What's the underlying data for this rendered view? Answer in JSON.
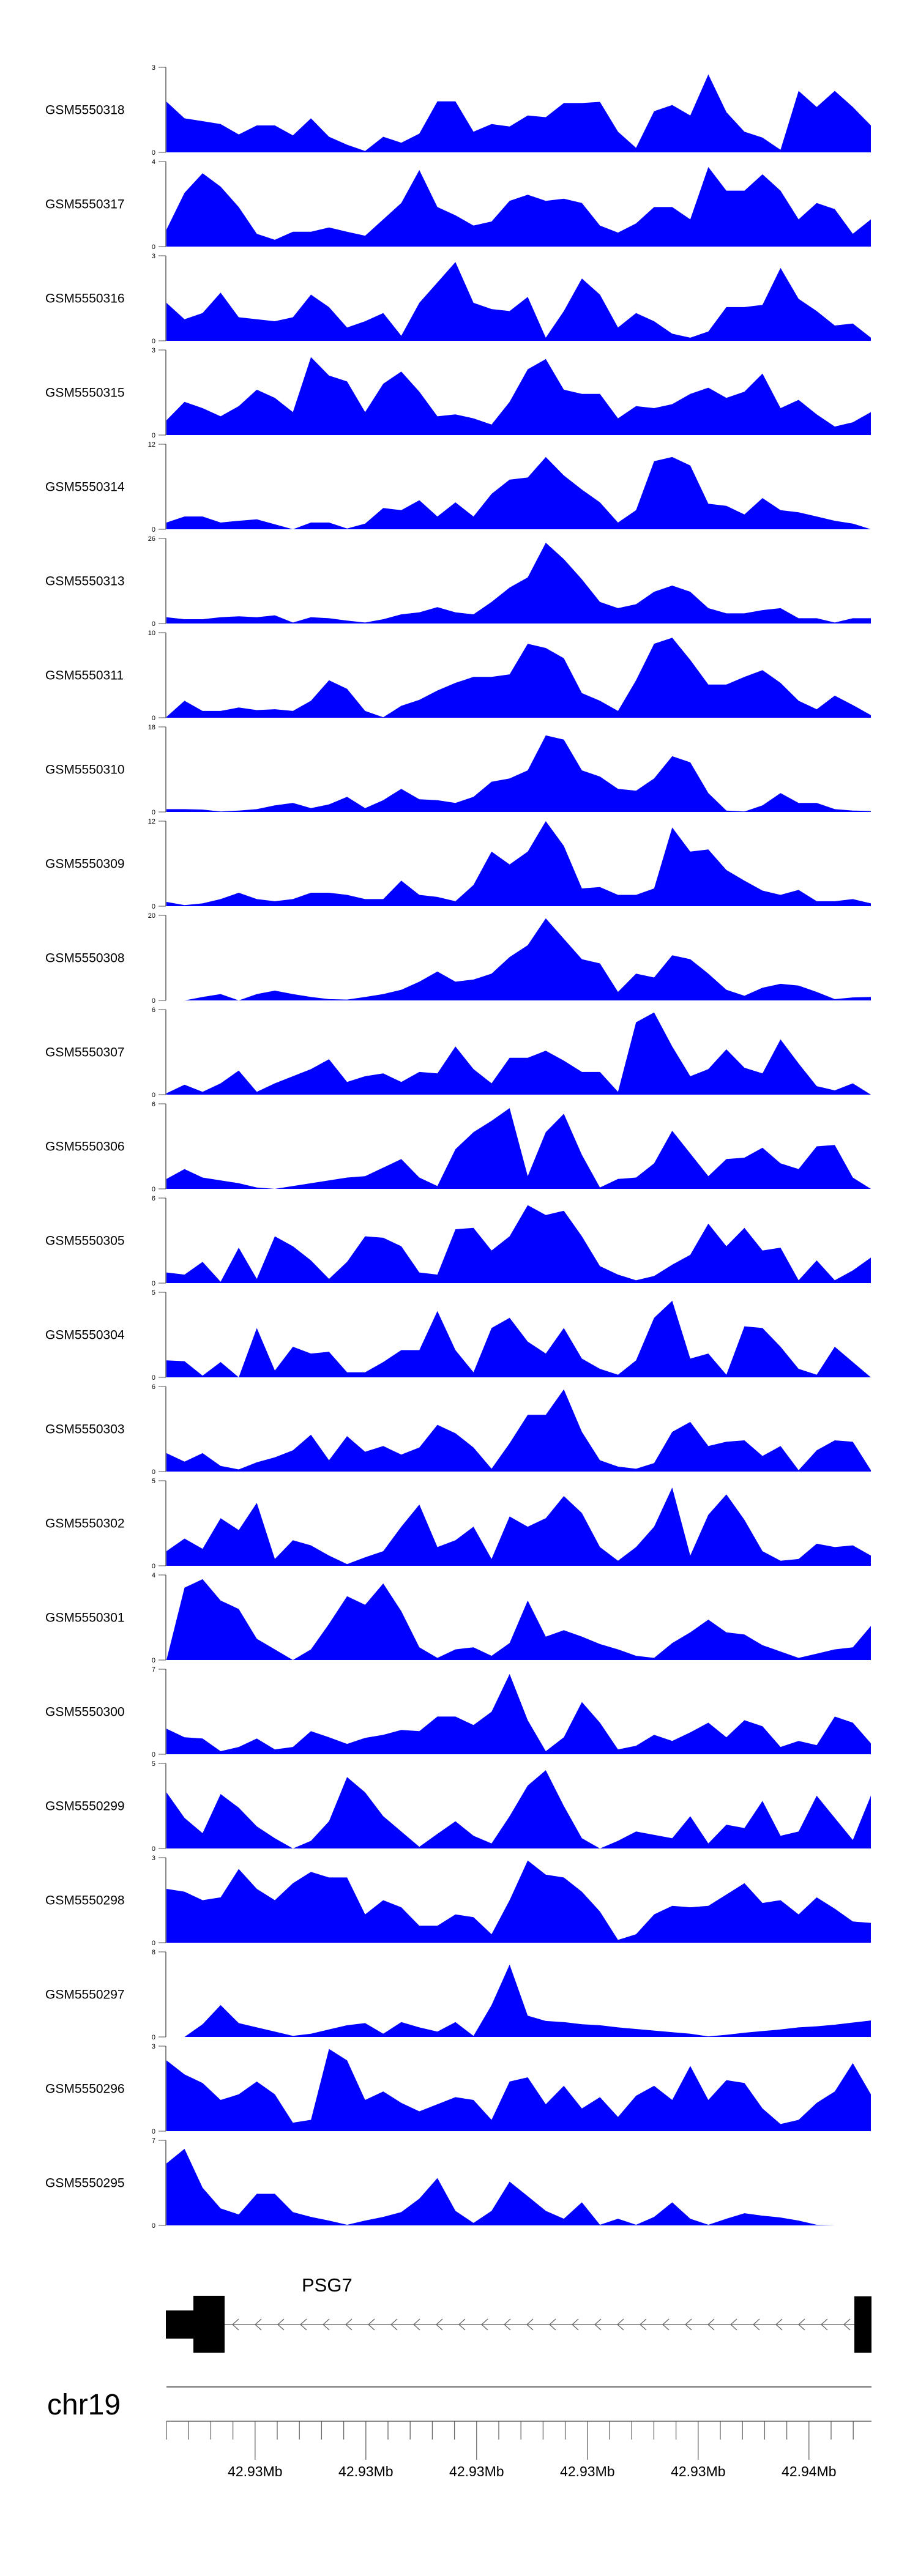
{
  "chart_data": {
    "type": "area",
    "title": "",
    "x_unit": "genomic bin (40 equal bins across region)",
    "fill_color": "#0000ff",
    "tracks": [
      {
        "name": "GSM5550318",
        "ylim": [
          0,
          3
        ],
        "ytick_labels": [
          "0",
          "3"
        ],
        "values": [
          1.79,
          1.2,
          1.1,
          1.0,
          0.63,
          0.95,
          0.95,
          0.6,
          1.2,
          0.55,
          0.27,
          0.05,
          0.55,
          0.34,
          0.66,
          1.8,
          1.8,
          0.73,
          1.0,
          0.91,
          1.3,
          1.24,
          1.74,
          1.74,
          1.78,
          0.73,
          0.16,
          1.45,
          1.67,
          1.3,
          2.75,
          1.42,
          0.73,
          0.52,
          0.09,
          2.17,
          1.6,
          2.17,
          1.6,
          0.95
        ]
      },
      {
        "name": "GSM5550317",
        "ylim": [
          0,
          4
        ],
        "ytick_labels": [
          "0",
          "4"
        ],
        "values": [
          0.8,
          2.53,
          3.45,
          2.82,
          1.86,
          0.6,
          0.32,
          0.7,
          0.7,
          0.9,
          0.7,
          0.51,
          1.28,
          2.05,
          3.6,
          1.86,
          1.47,
          0.99,
          1.18,
          2.15,
          2.44,
          2.15,
          2.25,
          2.05,
          0.99,
          0.66,
          1.09,
          1.86,
          1.86,
          1.28,
          3.74,
          2.63,
          2.63,
          3.4,
          2.63,
          1.28,
          2.05,
          1.76,
          0.6,
          1.28
        ]
      },
      {
        "name": "GSM5550316",
        "ylim": [
          0,
          3
        ],
        "ytick_labels": [
          "0",
          "3"
        ],
        "values": [
          1.34,
          0.76,
          0.98,
          1.7,
          0.83,
          0.76,
          0.69,
          0.83,
          1.63,
          1.19,
          0.47,
          0.69,
          0.98,
          0.18,
          1.34,
          2.06,
          2.78,
          1.34,
          1.12,
          1.05,
          1.55,
          0.11,
          1.05,
          2.2,
          1.63,
          0.47,
          0.98,
          0.69,
          0.25,
          0.11,
          0.33,
          1.19,
          1.19,
          1.27,
          2.57,
          1.48,
          1.05,
          0.54,
          0.61,
          0.11
        ]
      },
      {
        "name": "GSM5550315",
        "ylim": [
          0,
          3
        ],
        "ytick_labels": [
          "0",
          "3"
        ],
        "values": [
          0.52,
          1.17,
          0.95,
          0.66,
          1.02,
          1.6,
          1.31,
          0.81,
          2.75,
          2.1,
          1.89,
          0.81,
          1.81,
          2.24,
          1.53,
          0.66,
          0.73,
          0.59,
          0.37,
          1.17,
          2.32,
          2.68,
          1.6,
          1.45,
          1.45,
          0.59,
          1.02,
          0.95,
          1.09,
          1.45,
          1.67,
          1.31,
          1.53,
          2.17,
          0.95,
          1.24,
          0.73,
          0.3,
          0.45,
          0.81
        ]
      },
      {
        "name": "GSM5550314",
        "ylim": [
          0,
          12
        ],
        "ytick_labels": [
          "0",
          "12"
        ],
        "values": [
          0.95,
          1.8,
          1.8,
          0.95,
          1.2,
          1.4,
          0.7,
          0,
          0.95,
          0.95,
          0.1,
          0.8,
          3.0,
          2.7,
          4.1,
          1.8,
          3.8,
          1.8,
          5.0,
          7.0,
          7.3,
          10.2,
          7.6,
          5.6,
          3.8,
          0.95,
          2.7,
          9.6,
          10.2,
          9.0,
          3.6,
          3.3,
          2.1,
          4.4,
          2.7,
          2.4,
          1.8,
          1.2,
          0.8,
          0
        ]
      },
      {
        "name": "GSM5550313",
        "ylim": [
          0,
          26
        ],
        "ytick_labels": [
          "0",
          "26"
        ],
        "values": [
          1.9,
          1.3,
          1.3,
          1.9,
          2.2,
          1.9,
          2.5,
          0.3,
          1.9,
          1.6,
          0.9,
          0.3,
          1.3,
          2.8,
          3.4,
          5.0,
          3.4,
          2.8,
          6.6,
          11.0,
          14.1,
          24.7,
          19.7,
          13.5,
          6.6,
          4.7,
          5.9,
          9.7,
          11.6,
          9.7,
          4.7,
          3.1,
          3.1,
          4.1,
          4.7,
          1.6,
          1.6,
          0.3,
          1.6,
          1.6
        ]
      },
      {
        "name": "GSM5550311",
        "ylim": [
          0,
          10
        ],
        "ytick_labels": [
          "0",
          "10"
        ],
        "values": [
          0.1,
          2.0,
          0.8,
          0.8,
          1.2,
          0.9,
          1.0,
          0.8,
          2.0,
          4.4,
          3.4,
          0.8,
          0.05,
          1.4,
          2.1,
          3.2,
          4.1,
          4.8,
          4.8,
          5.1,
          8.7,
          8.2,
          7.0,
          2.9,
          2.0,
          0.8,
          4.4,
          8.7,
          9.4,
          6.8,
          3.9,
          3.9,
          4.8,
          5.6,
          4.1,
          2.0,
          1.0,
          2.6,
          1.5,
          0.3
        ]
      },
      {
        "name": "GSM5550310",
        "ylim": [
          0,
          18
        ],
        "ytick_labels": [
          "0",
          "18"
        ],
        "values": [
          0.6,
          0.6,
          0.5,
          0.1,
          0.3,
          0.6,
          1.4,
          1.9,
          0.8,
          1.6,
          3.2,
          0.8,
          2.5,
          4.9,
          2.7,
          2.5,
          1.9,
          3.2,
          6.4,
          7.1,
          8.8,
          16.2,
          15.3,
          8.8,
          7.5,
          4.9,
          4.5,
          7.1,
          11.8,
          10.5,
          4.0,
          0.3,
          0.1,
          1.4,
          4.0,
          1.9,
          1.9,
          0.6,
          0.3,
          0.2
        ]
      },
      {
        "name": "GSM5550309",
        "ylim": [
          0,
          12
        ],
        "ytick_labels": [
          "0",
          "12"
        ],
        "values": [
          0.6,
          0.15,
          0.4,
          1.0,
          1.9,
          1.0,
          0.7,
          1.0,
          1.9,
          1.9,
          1.6,
          1.0,
          1.0,
          3.6,
          1.6,
          1.3,
          0.7,
          3.0,
          7.7,
          5.9,
          7.7,
          12.0,
          8.5,
          2.5,
          2.7,
          1.6,
          1.6,
          2.5,
          11.1,
          7.7,
          8.0,
          5.1,
          3.6,
          2.2,
          1.6,
          2.3,
          0.7,
          0.7,
          1.0,
          0.4
        ]
      },
      {
        "name": "GSM5550308",
        "ylim": [
          0,
          20
        ],
        "ytick_labels": [
          "0",
          "20"
        ],
        "values": [
          0,
          0,
          0.8,
          1.5,
          0,
          1.5,
          2.3,
          1.5,
          0.8,
          0.3,
          0.2,
          0.8,
          1.5,
          2.5,
          4.4,
          6.8,
          4.4,
          4.9,
          6.3,
          10.2,
          13.0,
          19.3,
          14.5,
          9.7,
          8.7,
          2.0,
          6.3,
          5.4,
          10.6,
          9.7,
          6.3,
          2.5,
          1.1,
          3.0,
          3.9,
          3.5,
          2.0,
          0.3,
          0.7,
          0.8
        ]
      },
      {
        "name": "GSM5550307",
        "ylim": [
          0,
          6
        ],
        "ytick_labels": [
          "0",
          "6"
        ],
        "values": [
          0.1,
          0.7,
          0.2,
          0.8,
          1.7,
          0.2,
          0.8,
          1.3,
          1.8,
          2.5,
          0.9,
          1.3,
          1.5,
          0.9,
          1.6,
          1.5,
          3.4,
          1.8,
          0.8,
          2.6,
          2.6,
          3.1,
          2.4,
          1.6,
          1.6,
          0.2,
          5.1,
          5.8,
          3.4,
          1.3,
          1.8,
          3.2,
          1.9,
          1.5,
          3.9,
          2.2,
          0.6,
          0.3,
          0.8,
          0
        ]
      },
      {
        "name": "GSM5550306",
        "ylim": [
          0,
          6
        ],
        "ytick_labels": [
          "0",
          "6"
        ],
        "values": [
          0.7,
          1.4,
          0.8,
          0.6,
          0.4,
          0.1,
          0,
          0.2,
          0.4,
          0.6,
          0.8,
          0.9,
          1.5,
          2.1,
          0.8,
          0.2,
          2.8,
          4.0,
          4.8,
          5.7,
          0.9,
          4.0,
          5.3,
          2.4,
          0.1,
          0.7,
          0.8,
          1.8,
          4.1,
          2.5,
          0.9,
          2.1,
          2.2,
          2.9,
          1.8,
          1.4,
          3.0,
          3.1,
          0.8,
          0
        ]
      },
      {
        "name": "GSM5550305",
        "ylim": [
          0,
          6
        ],
        "ytick_labels": [
          "0",
          "6"
        ],
        "values": [
          0.75,
          0.6,
          1.5,
          0.1,
          2.5,
          0.3,
          3.3,
          2.6,
          1.6,
          0.3,
          1.5,
          3.3,
          3.2,
          2.6,
          0.75,
          0.6,
          3.8,
          3.9,
          2.3,
          3.3,
          5.5,
          4.8,
          5.1,
          3.3,
          1.2,
          0.6,
          0.2,
          0.5,
          1.3,
          2.0,
          4.2,
          2.6,
          3.9,
          2.3,
          2.5,
          0.2,
          1.6,
          0.2,
          0.9,
          1.8
        ]
      },
      {
        "name": "GSM5550304",
        "ylim": [
          0,
          5
        ],
        "ytick_labels": [
          "0",
          "5"
        ],
        "values": [
          1.0,
          0.95,
          0.1,
          0.9,
          0,
          2.9,
          0.4,
          1.8,
          1.4,
          1.5,
          0.3,
          0.3,
          0.9,
          1.6,
          1.6,
          3.9,
          1.6,
          0.3,
          2.9,
          3.5,
          2.1,
          1.4,
          2.9,
          1.1,
          0.5,
          0.15,
          1.0,
          3.5,
          4.5,
          1.1,
          1.4,
          0.15,
          3.0,
          2.9,
          1.8,
          0.5,
          0.15,
          1.8,
          0.9,
          0
        ]
      },
      {
        "name": "GSM5550303",
        "ylim": [
          0,
          6
        ],
        "ytick_labels": [
          "0",
          "6"
        ],
        "values": [
          1.3,
          0.7,
          1.3,
          0.4,
          0.15,
          0.65,
          1.0,
          1.5,
          2.6,
          0.8,
          2.5,
          1.4,
          1.8,
          1.2,
          1.7,
          3.3,
          2.7,
          1.7,
          0.2,
          2.0,
          4.0,
          4.0,
          5.8,
          2.8,
          0.8,
          0.35,
          0.2,
          0.6,
          2.8,
          3.5,
          1.8,
          2.1,
          2.2,
          1.1,
          1.8,
          0.1,
          1.5,
          2.2,
          2.1,
          0.1
        ]
      },
      {
        "name": "GSM5550302",
        "ylim": [
          0,
          5
        ],
        "ytick_labels": [
          "0",
          "5"
        ],
        "values": [
          0.86,
          1.6,
          1.0,
          2.8,
          2.1,
          3.7,
          0.4,
          1.5,
          1.2,
          0.6,
          0.1,
          0.5,
          0.86,
          2.3,
          3.6,
          1.1,
          1.5,
          2.3,
          0.4,
          2.9,
          2.3,
          2.8,
          4.1,
          3.1,
          1.1,
          0.3,
          1.1,
          2.3,
          4.6,
          0.6,
          3.0,
          4.2,
          2.7,
          0.86,
          0.3,
          0.4,
          1.3,
          1.1,
          1.2,
          0.6
        ]
      },
      {
        "name": "GSM5550301",
        "ylim": [
          0,
          4
        ],
        "ytick_labels": [
          "0",
          "4"
        ],
        "values": [
          0,
          3.4,
          3.8,
          2.8,
          2.4,
          1.0,
          0.5,
          0,
          0.5,
          1.7,
          3.0,
          2.6,
          3.6,
          2.3,
          0.6,
          0.1,
          0.5,
          0.6,
          0.2,
          0.8,
          2.8,
          1.1,
          1.4,
          1.1,
          0.75,
          0.5,
          0.2,
          0.1,
          0.8,
          1.3,
          1.9,
          1.3,
          1.2,
          0.7,
          0.4,
          0.1,
          0.3,
          0.5,
          0.6,
          1.6
        ]
      },
      {
        "name": "GSM5550300",
        "ylim": [
          0,
          7
        ],
        "ytick_labels": [
          "0",
          "7"
        ],
        "values": [
          2.1,
          1.4,
          1.3,
          0.25,
          0.6,
          1.3,
          0.4,
          0.6,
          1.9,
          1.4,
          0.85,
          1.35,
          1.6,
          2.0,
          1.9,
          3.1,
          3.1,
          2.4,
          3.5,
          6.6,
          2.8,
          0.25,
          1.4,
          4.3,
          2.6,
          0.4,
          0.7,
          1.6,
          1.1,
          1.8,
          2.6,
          1.4,
          2.8,
          2.3,
          0.6,
          1.1,
          0.75,
          3.1,
          2.6,
          0.9
        ]
      },
      {
        "name": "GSM5550299",
        "ylim": [
          0,
          5
        ],
        "ytick_labels": [
          "0",
          "5"
        ],
        "values": [
          3.3,
          1.8,
          0.9,
          3.2,
          2.4,
          1.3,
          0.6,
          0,
          0.45,
          1.6,
          4.2,
          3.3,
          1.9,
          1.0,
          0.1,
          0.86,
          1.6,
          0.75,
          0.3,
          1.9,
          3.7,
          4.6,
          2.5,
          0.6,
          0,
          0.45,
          1.0,
          0.8,
          0.6,
          1.9,
          0.3,
          1.4,
          1.2,
          2.8,
          0.75,
          1.0,
          3.1,
          1.8,
          0.5,
          3.1
        ]
      },
      {
        "name": "GSM5550298",
        "ylim": [
          0,
          3
        ],
        "ytick_labels": [
          "0",
          "3"
        ],
        "values": [
          1.9,
          1.8,
          1.5,
          1.6,
          2.6,
          1.9,
          1.5,
          2.1,
          2.5,
          2.3,
          2.3,
          1.0,
          1.5,
          1.25,
          0.6,
          0.6,
          1.0,
          0.9,
          0.3,
          1.5,
          2.9,
          2.4,
          2.3,
          1.8,
          1.1,
          0.1,
          0.3,
          1.0,
          1.3,
          1.25,
          1.3,
          1.7,
          2.1,
          1.4,
          1.5,
          1.0,
          1.6,
          1.2,
          0.75,
          0.7
        ]
      },
      {
        "name": "GSM5550297",
        "ylim": [
          0,
          8
        ],
        "ytick_labels": [
          "0",
          "8"
        ],
        "values": [
          0,
          0,
          1.2,
          3.0,
          1.3,
          0.9,
          0.5,
          0.1,
          0.3,
          0.7,
          1.1,
          1.3,
          0.3,
          1.4,
          0.9,
          0.5,
          1.4,
          0.1,
          3.0,
          6.8,
          2.0,
          1.5,
          1.4,
          1.2,
          1.1,
          0.9,
          0.75,
          0.6,
          0.45,
          0.3,
          0.05,
          0.2,
          0.4,
          0.55,
          0.7,
          0.9,
          1.0,
          1.15,
          1.35,
          1.55
        ]
      },
      {
        "name": "GSM5550296",
        "ylim": [
          0,
          3
        ],
        "ytick_labels": [
          "0",
          "3"
        ],
        "values": [
          2.5,
          2.0,
          1.7,
          1.1,
          1.3,
          1.75,
          1.3,
          0.3,
          0.4,
          2.9,
          2.5,
          1.1,
          1.4,
          1.0,
          0.7,
          0.95,
          1.2,
          1.1,
          0.4,
          1.75,
          1.9,
          0.95,
          1.6,
          0.8,
          1.2,
          0.5,
          1.25,
          1.6,
          1.1,
          2.3,
          1.1,
          1.8,
          1.7,
          0.8,
          0.25,
          0.4,
          1.0,
          1.4,
          2.4,
          1.3
        ]
      },
      {
        "name": "GSM5550295",
        "ylim": [
          0,
          7
        ],
        "ytick_labels": [
          "0",
          "7"
        ],
        "values": [
          5.1,
          6.3,
          3.1,
          1.4,
          0.9,
          2.6,
          2.6,
          1.1,
          0.7,
          0.4,
          0.05,
          0.4,
          0.7,
          1.1,
          2.2,
          3.9,
          1.2,
          0.2,
          1.2,
          3.6,
          2.4,
          1.2,
          0.55,
          1.9,
          0.05,
          0.55,
          0.05,
          0.7,
          1.9,
          0.55,
          0.05,
          0.55,
          1.0,
          0.8,
          0.65,
          0.4,
          0.05,
          0,
          0,
          0
        ]
      }
    ],
    "gene_track": {
      "gene_name": "PSG7",
      "strand": "-"
    },
    "genome_axis": {
      "chromosome": "chr19",
      "tick_labels": [
        "42.93Mb",
        "42.93Mb",
        "42.93Mb",
        "42.93Mb",
        "42.93Mb",
        "42.94Mb"
      ]
    }
  }
}
